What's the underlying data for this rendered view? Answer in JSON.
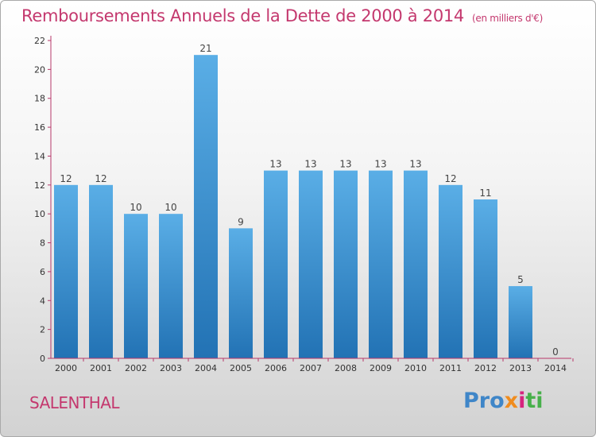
{
  "chart_data": {
    "type": "bar",
    "title": "Remboursements Annuels de la Dette de 2000 à 2014",
    "subtitle": "(en milliers d'€)",
    "xlabel": "",
    "ylabel": "",
    "categories": [
      "2000",
      "2001",
      "2002",
      "2003",
      "2004",
      "2005",
      "2006",
      "2007",
      "2008",
      "2009",
      "2010",
      "2011",
      "2012",
      "2013",
      "2014"
    ],
    "values": [
      12,
      12,
      10,
      10,
      21,
      9,
      13,
      13,
      13,
      13,
      13,
      12,
      11,
      5,
      0
    ],
    "ylim": [
      0,
      22
    ],
    "yticks": [
      0,
      2,
      4,
      6,
      8,
      10,
      12,
      14,
      16,
      18,
      20,
      22
    ],
    "grid": false,
    "colors": {
      "bar_top": "#5aaee6",
      "bar_bottom": "#2272b4",
      "axis": "#b7386a"
    }
  },
  "footer": {
    "place": "SALENTHAL",
    "logo_parts": [
      "Pro",
      "x",
      "i",
      "ti"
    ],
    "logo_colors": [
      "#3f86c8",
      "#f08c1e",
      "#d6247e",
      "#47b04a"
    ]
  }
}
